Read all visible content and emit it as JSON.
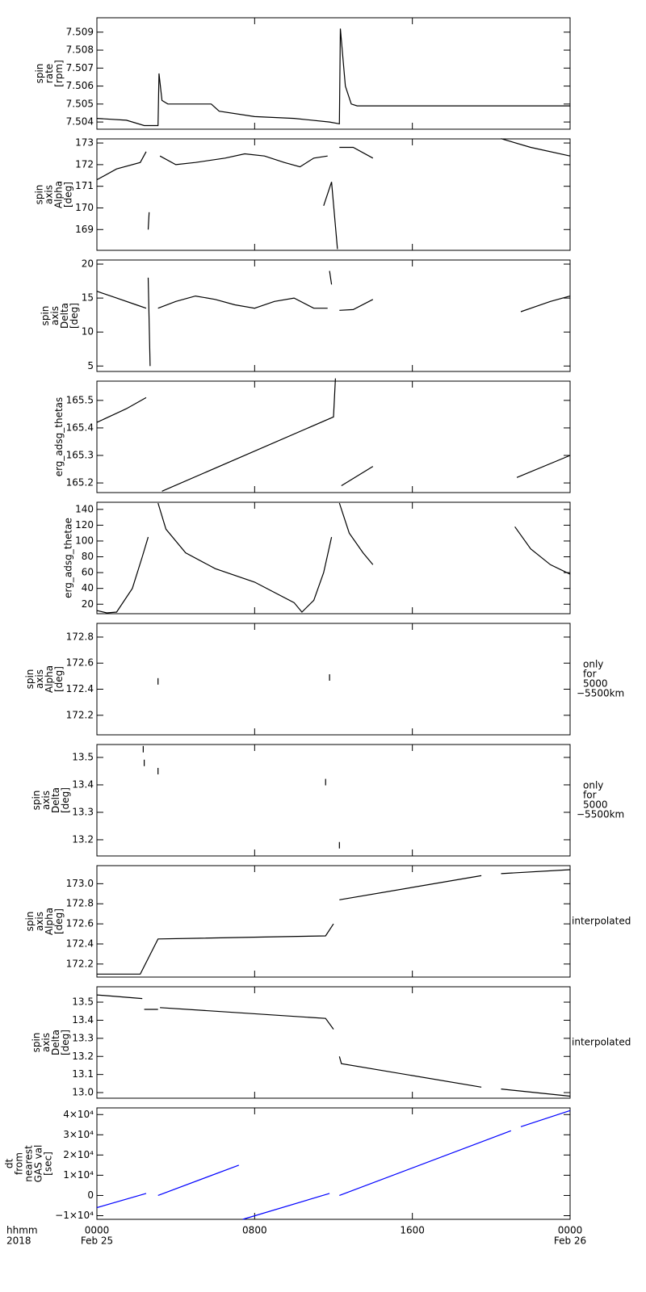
{
  "chart_data": [
    {
      "type": "line",
      "ylabel": [
        "spin",
        "rate",
        "[rpm]"
      ],
      "color": "#000000",
      "xlim": [
        0,
        24
      ],
      "xticks": [
        0,
        8,
        16,
        24
      ],
      "ylim": [
        7.5036,
        7.5098
      ],
      "yticks": [
        7.504,
        7.505,
        7.506,
        7.507,
        7.508,
        7.509
      ],
      "x": [
        0,
        1.5,
        2.4,
        3.1,
        3.15,
        3.3,
        3.6,
        5.8,
        6.2,
        8,
        10,
        11.8,
        12.3,
        12.35,
        12.6,
        12.9,
        13.2,
        18,
        24
      ],
      "values": [
        7.5042,
        7.5041,
        7.5038,
        7.5038,
        7.5067,
        7.5052,
        7.505,
        7.505,
        7.5046,
        7.5043,
        7.5042,
        7.504,
        7.5039,
        7.5092,
        7.506,
        7.505,
        7.5049,
        7.5049,
        7.5049
      ]
    },
    {
      "type": "line",
      "ylabel": [
        "spin",
        "axis",
        "Alpha",
        "[deg]"
      ],
      "color": "#000000",
      "xlim": [
        0,
        24
      ],
      "xticks": [
        0,
        8,
        16,
        24
      ],
      "ylim": [
        168.04,
        173.19
      ],
      "yticks": [
        169,
        170,
        171,
        172,
        173
      ],
      "x": [
        0,
        1,
        2.2,
        2.5,
        null,
        2.6,
        2.65,
        null,
        3.2,
        4,
        5,
        6.5,
        7.5,
        8.5,
        9.5,
        10.3,
        11,
        11.7,
        null,
        11.5,
        11.9,
        12.2,
        null,
        12.3,
        13,
        14,
        null,
        20.5,
        22,
        24
      ],
      "values": [
        171.3,
        171.8,
        172.1,
        172.6,
        null,
        169,
        169.8,
        null,
        172.4,
        172,
        172.1,
        172.3,
        172.5,
        172.4,
        172.1,
        171.9,
        172.3,
        172.4,
        null,
        170.1,
        171.2,
        168.1,
        null,
        172.8,
        172.8,
        172.3,
        null,
        173.2,
        172.8,
        172.4
      ]
    },
    {
      "type": "line",
      "ylabel": [
        "spin",
        "axis",
        "Delta",
        "[deg]"
      ],
      "color": "#000000",
      "xlim": [
        0,
        24
      ],
      "xticks": [
        0,
        8,
        16,
        24
      ],
      "ylim": [
        4.2,
        20.6
      ],
      "yticks": [
        5,
        10,
        15,
        20
      ],
      "x": [
        0,
        1,
        2,
        2.5,
        null,
        2.6,
        2.7,
        null,
        3.1,
        4,
        5,
        6,
        7,
        8,
        9,
        10,
        11,
        11.7,
        null,
        11.8,
        11.9,
        null,
        12.3,
        13,
        14,
        null,
        21.5,
        23,
        24
      ],
      "values": [
        16,
        15,
        14,
        13.5,
        null,
        18,
        5,
        null,
        13.5,
        14.5,
        15.3,
        14.8,
        14,
        13.5,
        14.5,
        15,
        13.5,
        13.5,
        null,
        19,
        17,
        null,
        13.2,
        13.3,
        14.8,
        null,
        13,
        14.5,
        15.3
      ]
    },
    {
      "type": "line",
      "ylabel": [
        "erg_adsg_thetas"
      ],
      "color": "#000000",
      "xlim": [
        0,
        24
      ],
      "xticks": [
        0,
        8,
        16,
        24
      ],
      "ylim": [
        165.165,
        165.57
      ],
      "yticks": [
        165.2,
        165.3,
        165.4,
        165.5
      ],
      "x": [
        0,
        1.5,
        2.5,
        null,
        3.3,
        12,
        12.1,
        null,
        12.4,
        14,
        null,
        21.3,
        24
      ],
      "values": [
        165.42,
        165.47,
        165.51,
        null,
        165.17,
        165.44,
        165.58,
        null,
        165.19,
        165.26,
        null,
        165.22,
        165.3
      ]
    },
    {
      "type": "line",
      "ylabel": [
        "erg_adsg_thetae"
      ],
      "color": "#000000",
      "xlim": [
        0,
        24
      ],
      "xticks": [
        0,
        8,
        16,
        24
      ],
      "ylim": [
        8,
        149
      ],
      "yticks": [
        20,
        40,
        60,
        80,
        100,
        120,
        140
      ],
      "x": [
        0,
        0.5,
        1,
        1.8,
        2.3,
        2.6,
        null,
        3.1,
        3.5,
        4.5,
        6,
        8,
        10,
        10.4,
        11,
        11.5,
        11.9,
        null,
        12.3,
        12.8,
        13.5,
        14,
        null,
        21.2,
        22,
        23,
        24
      ],
      "values": [
        12,
        9,
        10,
        40,
        80,
        105,
        null,
        148,
        115,
        85,
        65,
        48,
        22,
        10,
        25,
        60,
        105,
        null,
        148,
        110,
        85,
        70,
        null,
        118,
        90,
        70,
        58
      ]
    },
    {
      "type": "scatter",
      "ylabel": [
        "spin",
        "axis",
        "Alpha",
        "[deg]"
      ],
      "note": [
        "only",
        "for",
        "5000",
        "−5500km"
      ],
      "color": "#000000",
      "xlim": [
        0,
        24
      ],
      "xticks": [
        0,
        8,
        16,
        24
      ],
      "ylim": [
        172.05,
        172.905
      ],
      "yticks": [
        172.2,
        172.4,
        172.6,
        172.8
      ],
      "x": [
        3.1,
        11.8
      ],
      "values": [
        172.46,
        172.49
      ]
    },
    {
      "type": "scatter",
      "ylabel": [
        "spin",
        "axis",
        "Delta",
        "[deg]"
      ],
      "note": [
        "only",
        "for",
        "5000",
        "−5500km"
      ],
      "color": "#000000",
      "xlim": [
        0,
        24
      ],
      "xticks": [
        0,
        8,
        16,
        24
      ],
      "ylim": [
        13.141,
        13.547
      ],
      "yticks": [
        13.2,
        13.3,
        13.4,
        13.5
      ],
      "x": [
        2.35,
        2.4,
        3.1,
        11.6,
        12.3
      ],
      "values": [
        13.53,
        13.48,
        13.45,
        13.41,
        13.18
      ]
    },
    {
      "type": "line",
      "ylabel": [
        "spin",
        "axis",
        "Alpha",
        "[deg]"
      ],
      "note": [
        "interpolated"
      ],
      "color": "#000000",
      "xlim": [
        0,
        24
      ],
      "xticks": [
        0,
        8,
        16,
        24
      ],
      "ylim": [
        172.07,
        173.18
      ],
      "yticks": [
        172.2,
        172.4,
        172.6,
        172.8,
        {
          "value": 173,
          "label": "173.0"
        }
      ],
      "x": [
        0,
        2.2,
        3.1,
        11.6,
        12,
        null,
        12.3,
        19.5,
        null,
        20.5,
        24
      ],
      "values": [
        172.1,
        172.1,
        172.45,
        172.48,
        172.6,
        null,
        172.84,
        173.08,
        null,
        173.1,
        173.14
      ]
    },
    {
      "type": "line",
      "ylabel": [
        "spin",
        "axis",
        "Delta",
        "[deg]"
      ],
      "note": [
        "interpolated"
      ],
      "color": "#000000",
      "xlim": [
        0,
        24
      ],
      "xticks": [
        0,
        8,
        16,
        24
      ],
      "ylim": [
        12.969,
        13.585
      ],
      "yticks": [
        {
          "value": 13,
          "label": "13.0"
        },
        13.1,
        13.2,
        13.3,
        13.4,
        13.5
      ],
      "x": [
        0,
        2.3,
        null,
        2.4,
        3.1,
        null,
        3.2,
        11.6,
        12,
        null,
        12.3,
        12.4,
        19.5,
        null,
        20.5,
        24
      ],
      "values": [
        13.54,
        13.52,
        null,
        13.46,
        13.46,
        null,
        13.47,
        13.41,
        13.35,
        null,
        13.2,
        13.16,
        13.03,
        null,
        13.02,
        12.98
      ]
    },
    {
      "type": "line",
      "ylabel": [
        "dt",
        "from",
        "nearest",
        "GAS val",
        "[sec]"
      ],
      "color": "#0000ff",
      "xlim": [
        0,
        24
      ],
      "xticks": [
        {
          "value": 0,
          "label": "0000"
        },
        {
          "value": 8,
          "label": "0800"
        },
        {
          "value": 16,
          "label": "1600"
        },
        {
          "value": 24,
          "label": "0000"
        }
      ],
      "xtick_sublabels": [
        "Feb 25",
        null,
        null,
        "Feb 26"
      ],
      "x_label_lines": [
        "hhmm",
        "2018"
      ],
      "ylim": [
        -11800,
        43300
      ],
      "yticks": [
        {
          "value": -10000,
          "label": "−1×10⁴"
        },
        0,
        {
          "value": 10000,
          "label": "1×10⁴"
        },
        {
          "value": 20000,
          "label": "2×10⁴"
        },
        {
          "value": 30000,
          "label": "3×10⁴"
        },
        {
          "value": 40000,
          "label": "4×10⁴"
        }
      ],
      "x": [
        0,
        2.5,
        null,
        3.1,
        7.2,
        null,
        7.4,
        11.8,
        null,
        12.3,
        21,
        null,
        21.5,
        24
      ],
      "values": [
        -6000,
        1000,
        null,
        0,
        15000,
        null,
        -11800,
        1000,
        null,
        0,
        32000,
        null,
        34000,
        42000
      ]
    }
  ]
}
